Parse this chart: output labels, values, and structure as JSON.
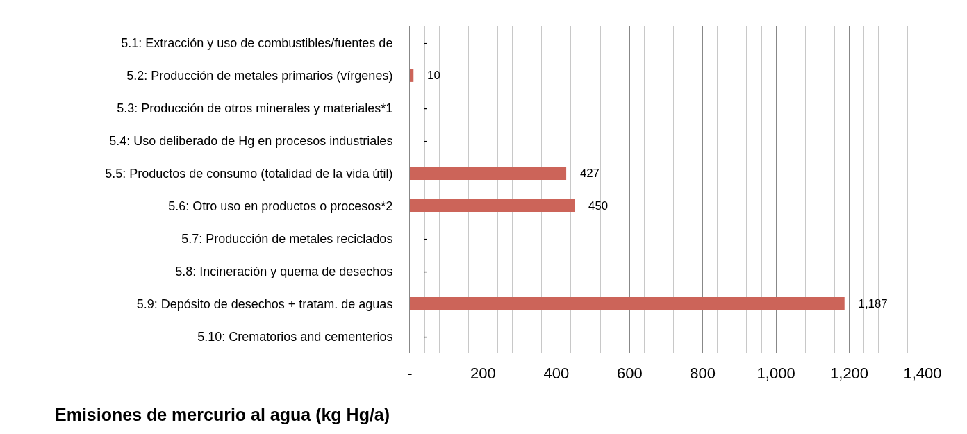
{
  "chart_data": {
    "type": "bar",
    "orientation": "horizontal",
    "xlabel": "Emisiones de mercurio al agua (kg Hg/a)",
    "categories": [
      "5.1: Extracción y uso de combustibles/fuentes de",
      "5.2: Producción de metales primarios (vírgenes)",
      "5.3: Producción de otros minerales y materiales*1",
      "5.4: Uso deliberado de Hg en procesos industriales",
      "5.5: Productos de consumo (totalidad de la vida útil)",
      "5.6: Otro uso en productos o procesos*2",
      "5.7: Producción de metales reciclados",
      "5.8: Incineración y quema de desechos",
      "5.9: Depósito de desechos + tratam. de aguas",
      "5.10: Crematorios and cementerios"
    ],
    "values": [
      0,
      10,
      0,
      0,
      427,
      450,
      0,
      0,
      1187,
      0
    ],
    "value_labels": [
      "-",
      "10",
      "-",
      "-",
      "427",
      "450",
      "-",
      "-",
      "1,187",
      "-"
    ],
    "color": "#cc6459",
    "xlim": [
      0,
      1400
    ],
    "xticks": [
      {
        "value": 0,
        "label": "-"
      },
      {
        "value": 200,
        "label": "200"
      },
      {
        "value": 400,
        "label": "400"
      },
      {
        "value": 600,
        "label": "600"
      },
      {
        "value": 800,
        "label": "800"
      },
      {
        "value": 1000,
        "label": "1,000"
      },
      {
        "value": 1200,
        "label": "1,200"
      },
      {
        "value": 1400,
        "label": "1,400"
      }
    ],
    "grid": "x"
  }
}
